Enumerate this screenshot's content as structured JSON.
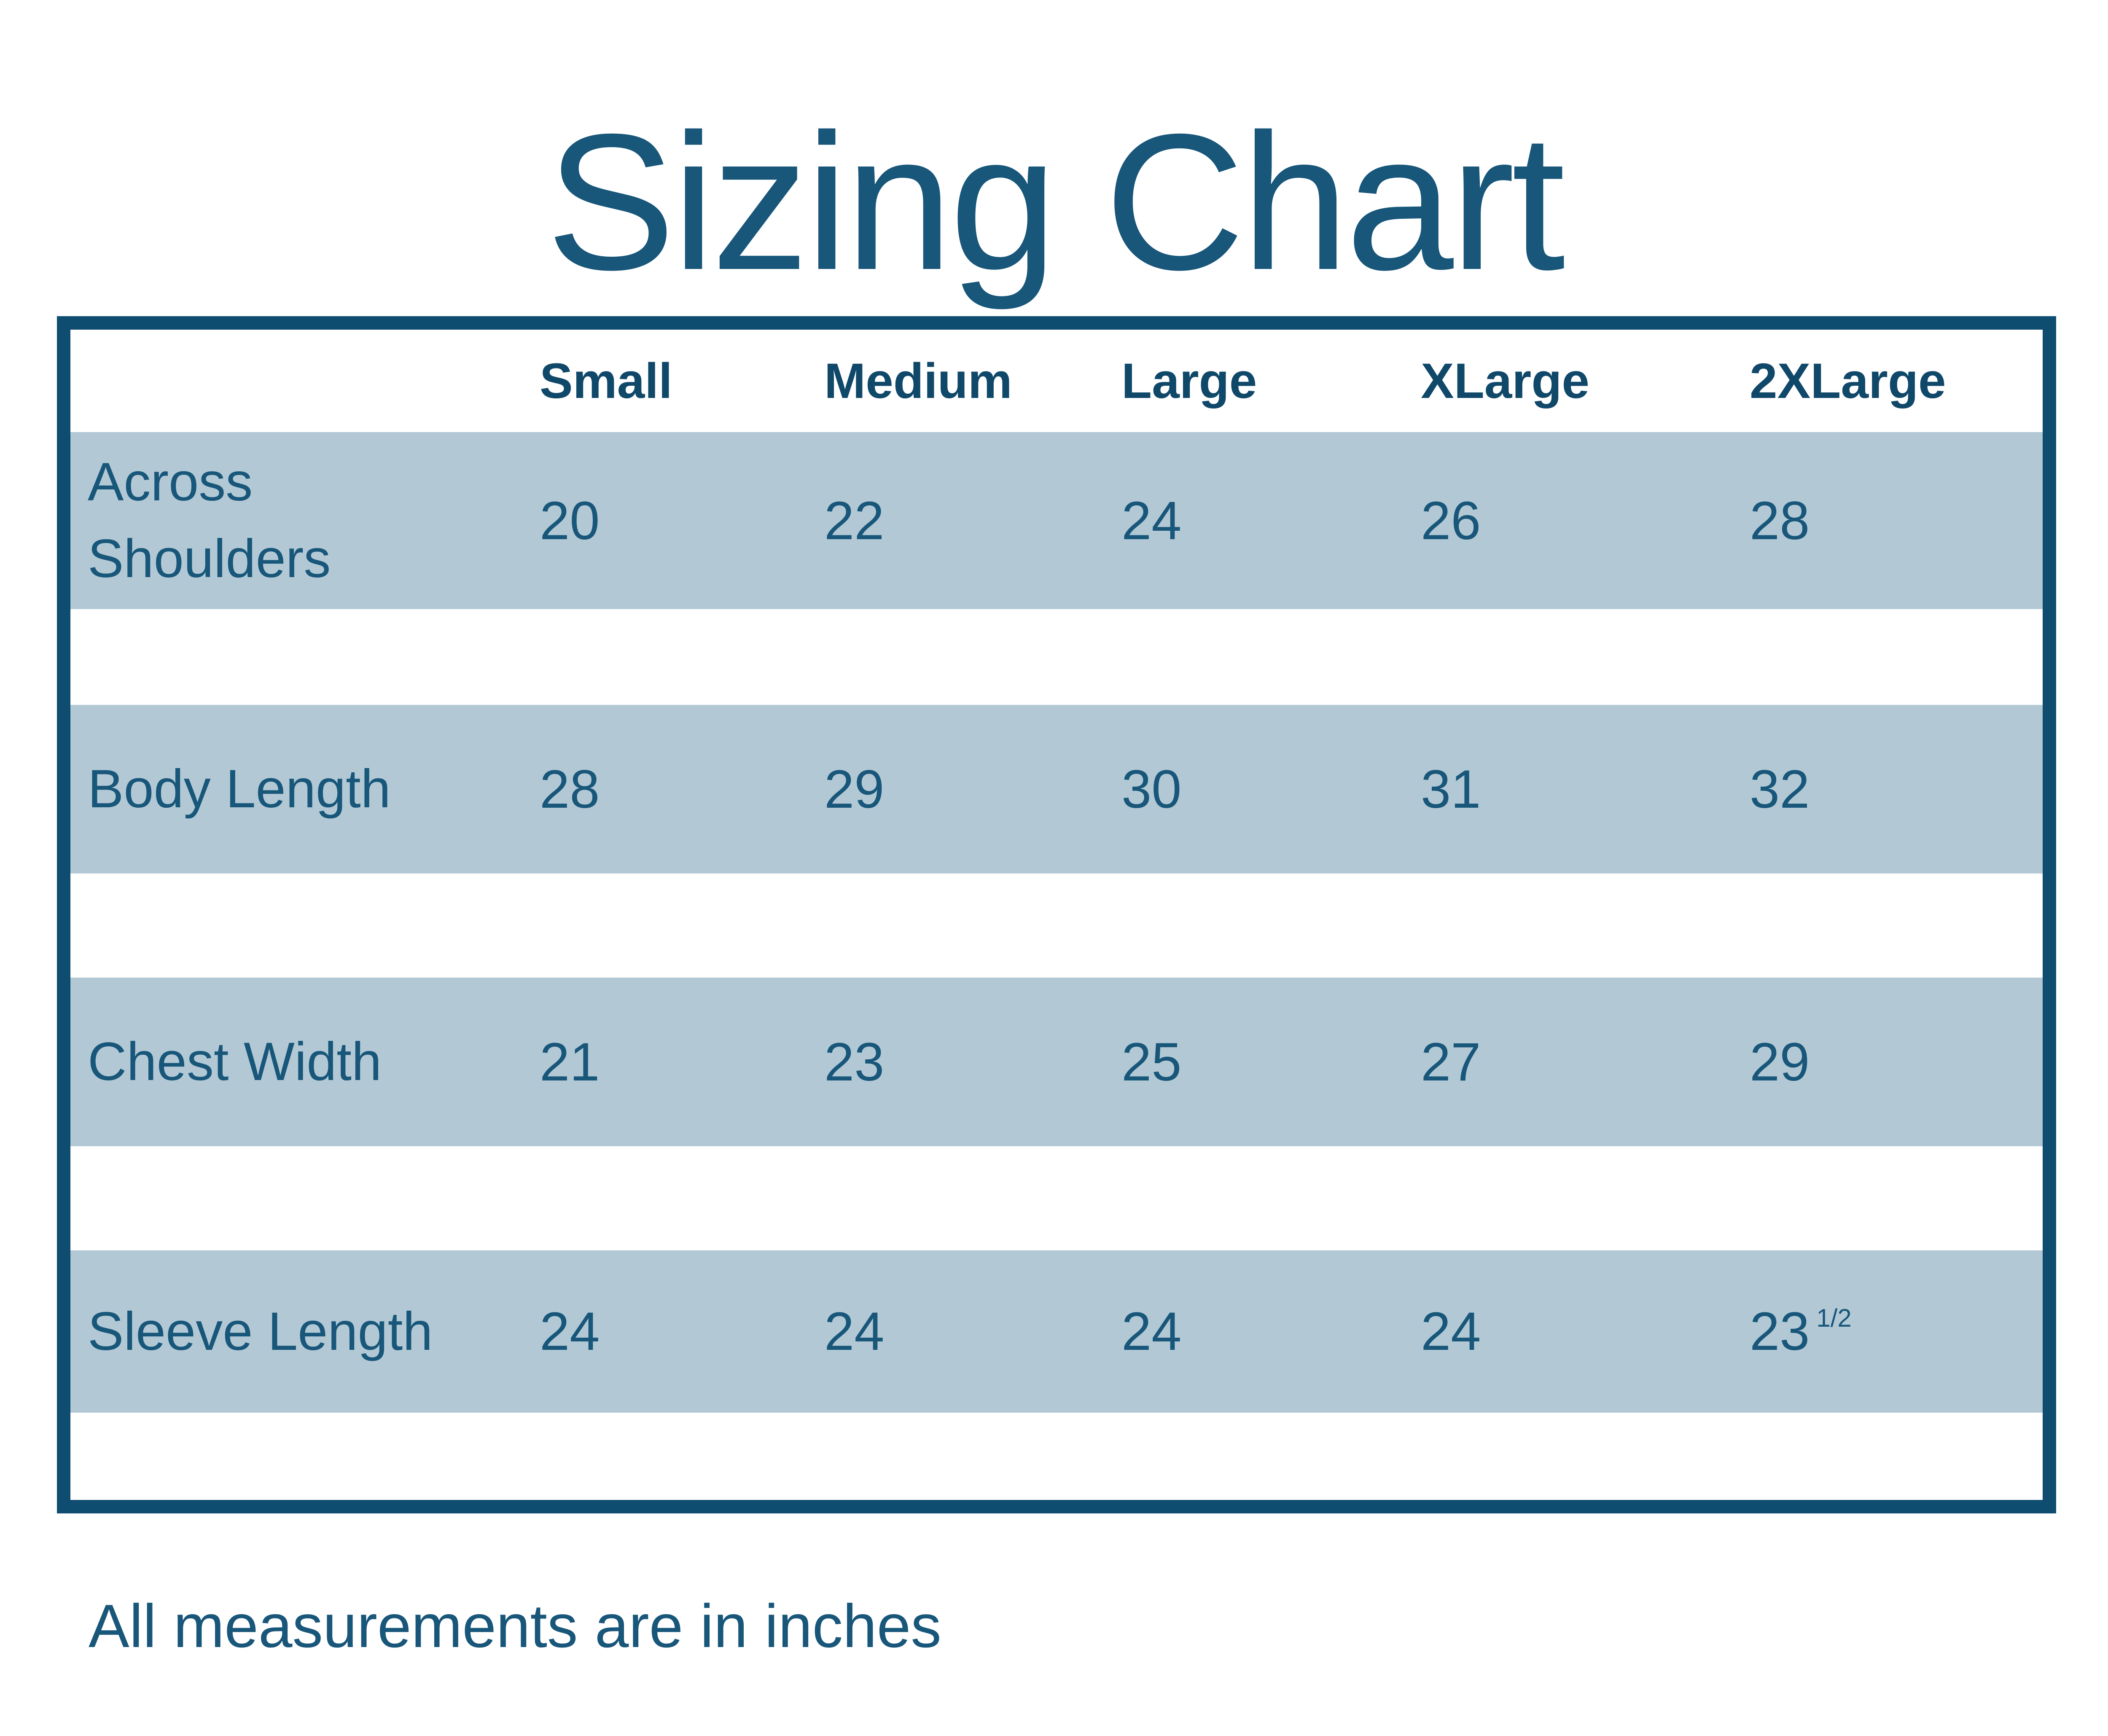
{
  "page": {
    "title": "Sizing Chart",
    "note": "All measurements are in inches"
  },
  "colors": {
    "border_navy": "#0e4d70",
    "text_navy": "#18567a",
    "header_navy": "#10486a",
    "stripe_blue": "#b2c9d5",
    "background": "#ffffff"
  },
  "table": {
    "headers": [
      "Small",
      "Medium",
      "Large",
      "XLarge",
      "2XLarge"
    ],
    "rows": [
      {
        "label": "Across Shoulders",
        "values": [
          "20",
          "22",
          "24",
          "26",
          "28"
        ]
      },
      {
        "label": "Body Length",
        "values": [
          "28",
          "29",
          "30",
          "31",
          "32"
        ]
      },
      {
        "label": "Chest Width",
        "values": [
          "21",
          "23",
          "25",
          "27",
          "29"
        ]
      },
      {
        "label": "Sleeve Length",
        "values": [
          "24",
          "24",
          "24",
          "24",
          "23"
        ],
        "fraction": "1/2"
      }
    ]
  },
  "chart_data": {
    "type": "table",
    "title": "Sizing Chart",
    "units": "inches",
    "columns": [
      "Small",
      "Medium",
      "Large",
      "XLarge",
      "2XLarge"
    ],
    "rows": [
      {
        "label": "Across Shoulders",
        "values": [
          20,
          22,
          24,
          26,
          28
        ]
      },
      {
        "label": "Body Length",
        "values": [
          28,
          29,
          30,
          31,
          32
        ]
      },
      {
        "label": "Chest Width",
        "values": [
          21,
          23,
          25,
          27,
          29
        ]
      },
      {
        "label": "Sleeve Length",
        "values": [
          24,
          24,
          24,
          24,
          23.5
        ]
      }
    ],
    "notes": "All measurements are in inches"
  }
}
